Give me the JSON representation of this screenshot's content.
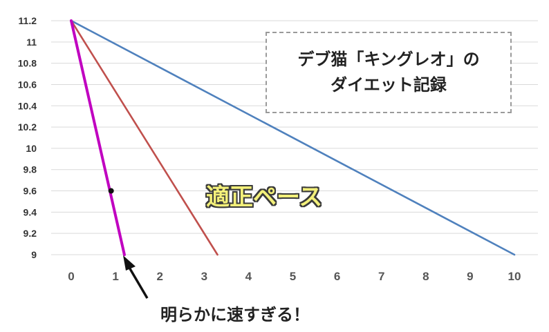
{
  "chart_data": {
    "type": "line",
    "xlim": [
      0,
      10
    ],
    "ylim": [
      9,
      11.2
    ],
    "x_ticks": [
      "0",
      "1",
      "2",
      "3",
      "4",
      "5",
      "6",
      "7",
      "8",
      "9",
      "10"
    ],
    "y_ticks": [
      "9",
      "9.2",
      "9.4",
      "9.6",
      "9.8",
      "10",
      "10.2",
      "10.4",
      "10.6",
      "10.8",
      "11",
      "11.2"
    ],
    "grid": "horizontal",
    "series": [
      {
        "color": "#4f81bd",
        "points": [
          [
            0,
            11.2
          ],
          [
            10,
            9.0
          ]
        ]
      },
      {
        "color": "#c0504d",
        "points": [
          [
            0,
            11.2
          ],
          [
            3.3,
            9.0
          ]
        ]
      },
      {
        "color": "#c000c0",
        "points": [
          [
            0,
            11.2
          ],
          [
            1.2,
            9.0
          ]
        ]
      }
    ],
    "marker": {
      "x": 0.9,
      "y": 9.6,
      "color": "#111111"
    }
  },
  "annotations": {
    "title_line1": "デブ猫「キングレオ」の",
    "title_line2": "ダイエット記録",
    "pace_label": "適正ペース",
    "too_fast_label": "明らかに速すぎる！"
  }
}
